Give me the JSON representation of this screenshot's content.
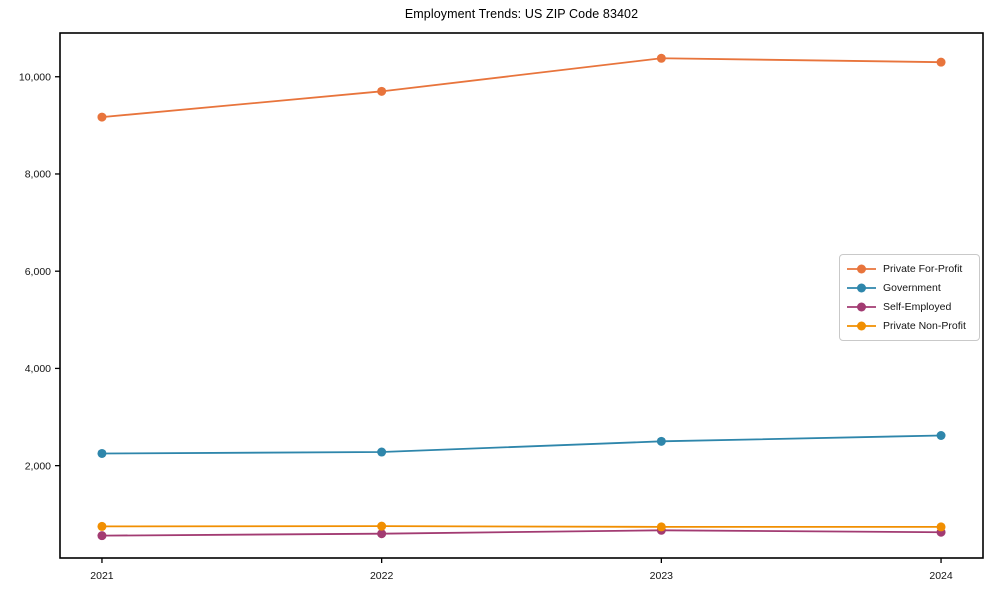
{
  "chart_data": {
    "type": "line",
    "title": "Employment Trends: US ZIP Code 83402",
    "xlabel": "",
    "ylabel": "",
    "x": [
      2021,
      2022,
      2023,
      2024
    ],
    "x_tick_labels": [
      "2021",
      "2022",
      "2023",
      "2024"
    ],
    "series": [
      {
        "name": "Private For-Profit",
        "color": "#E8743C",
        "values": [
          9170,
          9700,
          10380,
          10300
        ]
      },
      {
        "name": "Government",
        "color": "#2E86AB",
        "values": [
          2250,
          2280,
          2500,
          2620
        ]
      },
      {
        "name": "Self-Employed",
        "color": "#A23B72",
        "values": [
          560,
          600,
          670,
          630
        ]
      },
      {
        "name": "Private Non-Profit",
        "color": "#F18F01",
        "values": [
          750,
          755,
          740,
          740
        ]
      }
    ],
    "xlim": [
      2020.85,
      2024.15
    ],
    "ylim": [
      100,
      10900
    ],
    "yticks": [
      2000,
      4000,
      6000,
      8000,
      10000
    ],
    "ytick_labels": [
      "2,000",
      "4,000",
      "6,000",
      "8,000",
      "10,000"
    ],
    "grid": false,
    "legend_position": "center right",
    "marker": "circle",
    "frame_color": "#000000"
  }
}
